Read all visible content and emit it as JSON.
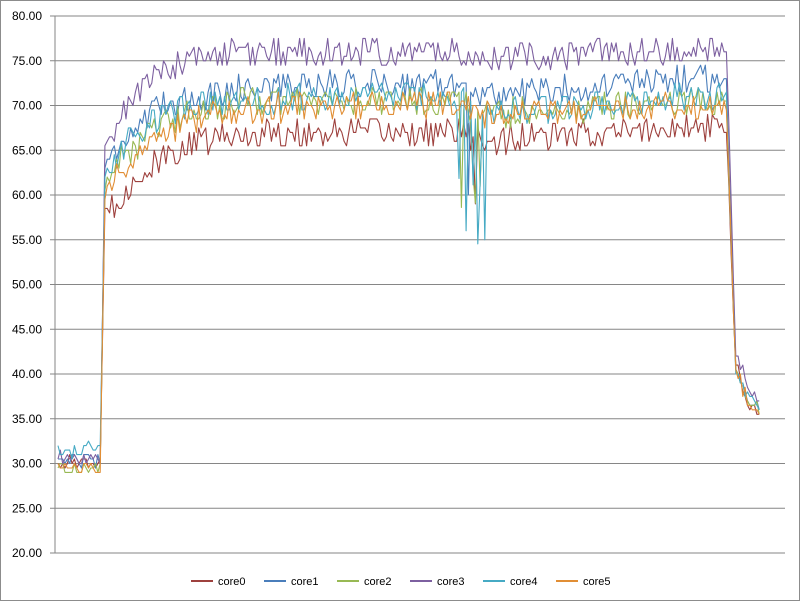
{
  "chart_data": {
    "type": "line",
    "title": "",
    "xlabel": "",
    "ylabel": "",
    "ylim": [
      20,
      80
    ],
    "yticks": [
      "20.00",
      "25.00",
      "30.00",
      "35.00",
      "40.00",
      "45.00",
      "50.00",
      "55.00",
      "60.00",
      "65.00",
      "70.00",
      "75.00",
      "80.00"
    ],
    "grid": "horizontal",
    "legend_position": "bottom",
    "sample_count": 300,
    "series": [
      {
        "name": "core0",
        "color": "#9e413e",
        "base_low": 30,
        "keypoints": [
          [
            0,
            30
          ],
          [
            18,
            30
          ],
          [
            20,
            58
          ],
          [
            27,
            60
          ],
          [
            35,
            62
          ],
          [
            45,
            64
          ],
          [
            55,
            65.5
          ],
          [
            70,
            66.5
          ],
          [
            95,
            67
          ],
          [
            170,
            67
          ],
          [
            180,
            66
          ],
          [
            265,
            67.5
          ],
          [
            285,
            67.5
          ],
          [
            289,
            41
          ],
          [
            296,
            36
          ],
          [
            310,
            34
          ]
        ]
      },
      {
        "name": "core1",
        "color": "#4a7ebb",
        "base_low": 30,
        "keypoints": [
          [
            0,
            30.5
          ],
          [
            18,
            30.5
          ],
          [
            20,
            63
          ],
          [
            27,
            66
          ],
          [
            35,
            68
          ],
          [
            45,
            70
          ],
          [
            60,
            71
          ],
          [
            80,
            72
          ],
          [
            120,
            72.5
          ],
          [
            170,
            72.5
          ],
          [
            180,
            71
          ],
          [
            265,
            73
          ],
          [
            285,
            73
          ],
          [
            289,
            40
          ],
          [
            296,
            37
          ],
          [
            310,
            35
          ]
        ]
      },
      {
        "name": "core2",
        "color": "#98b954",
        "base_low": 29.5,
        "keypoints": [
          [
            0,
            29.5
          ],
          [
            18,
            29.5
          ],
          [
            20,
            61
          ],
          [
            27,
            64
          ],
          [
            35,
            66
          ],
          [
            45,
            68
          ],
          [
            60,
            69.5
          ],
          [
            80,
            70.5
          ],
          [
            120,
            70.5
          ],
          [
            170,
            70.5
          ],
          [
            180,
            69
          ],
          [
            265,
            70.5
          ],
          [
            285,
            70.5
          ],
          [
            289,
            40
          ],
          [
            296,
            37
          ],
          [
            310,
            34.5
          ]
        ]
      },
      {
        "name": "core3",
        "color": "#7d60a0",
        "base_low": 30.5,
        "keypoints": [
          [
            0,
            30.5
          ],
          [
            18,
            30.5
          ],
          [
            20,
            65
          ],
          [
            25,
            68
          ],
          [
            32,
            71
          ],
          [
            40,
            73
          ],
          [
            50,
            74.5
          ],
          [
            60,
            75.5
          ],
          [
            90,
            76
          ],
          [
            170,
            76
          ],
          [
            180,
            75.5
          ],
          [
            265,
            76
          ],
          [
            285,
            76
          ],
          [
            289,
            42
          ],
          [
            296,
            38
          ],
          [
            310,
            36
          ]
        ]
      },
      {
        "name": "core4",
        "color": "#46aac4",
        "base_low": 31,
        "keypoints": [
          [
            0,
            31.5
          ],
          [
            18,
            31.5
          ],
          [
            20,
            62
          ],
          [
            27,
            65
          ],
          [
            35,
            67
          ],
          [
            45,
            69
          ],
          [
            60,
            70
          ],
          [
            80,
            70.5
          ],
          [
            120,
            71
          ],
          [
            170,
            71
          ],
          [
            180,
            69
          ],
          [
            265,
            71
          ],
          [
            285,
            71
          ],
          [
            289,
            40
          ],
          [
            296,
            37
          ],
          [
            310,
            35
          ]
        ]
      },
      {
        "name": "core5",
        "color": "#e18e35",
        "base_low": 29.5,
        "keypoints": [
          [
            0,
            29.5
          ],
          [
            18,
            29.5
          ],
          [
            20,
            60
          ],
          [
            27,
            63
          ],
          [
            35,
            65
          ],
          [
            45,
            67
          ],
          [
            60,
            68.5
          ],
          [
            80,
            69.5
          ],
          [
            120,
            70
          ],
          [
            170,
            70
          ],
          [
            180,
            69
          ],
          [
            265,
            70
          ],
          [
            285,
            70
          ],
          [
            289,
            40
          ],
          [
            296,
            36.5
          ],
          [
            310,
            34
          ]
        ]
      }
    ]
  }
}
